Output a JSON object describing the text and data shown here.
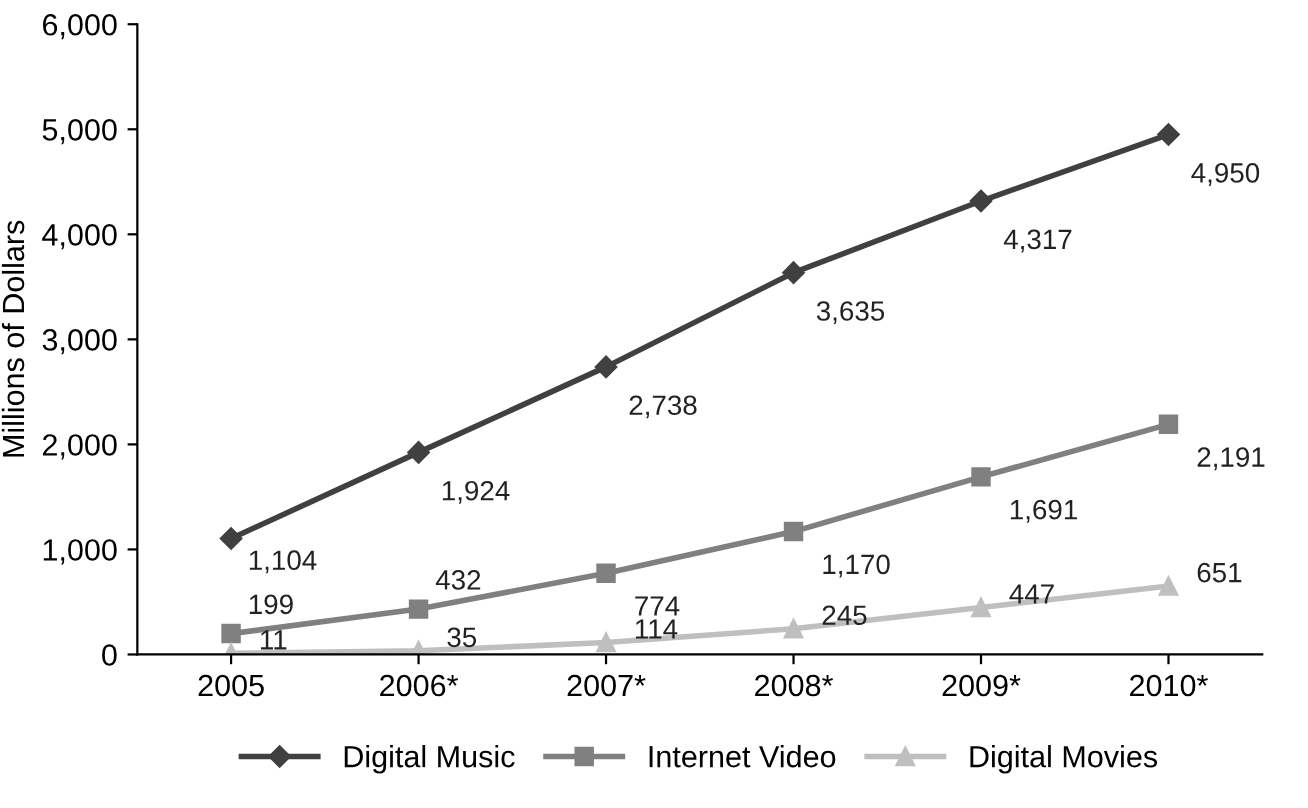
{
  "chart_data": {
    "type": "line",
    "ylabel": "Millions of Dollars",
    "categories": [
      "2005",
      "2006*",
      "2007*",
      "2008*",
      "2009*",
      "2010*"
    ],
    "ylim": [
      0,
      6000
    ],
    "yticks": [
      0,
      {
        "value": 1000,
        "label": "1,000"
      },
      {
        "value": 2000,
        "label": "2,000"
      },
      {
        "value": 3000,
        "label": "3,000"
      },
      {
        "value": 4000,
        "label": "4,000"
      },
      {
        "value": 5000,
        "label": "5,000"
      },
      {
        "value": 6000,
        "label": "6,000"
      }
    ],
    "grid": false,
    "legend": "bottom",
    "series": [
      {
        "name": "Digital Music",
        "color": "#404040",
        "marker": "diamond",
        "values": [
          1104,
          1924,
          2738,
          3635,
          4317,
          4950
        ],
        "value_labels": [
          "1,104",
          "1,924",
          "2,738",
          "3,635",
          "4,317",
          "4,950"
        ]
      },
      {
        "name": "Internet Video",
        "color": "#808080",
        "marker": "square",
        "values": [
          199,
          432,
          774,
          1170,
          1691,
          2191
        ],
        "value_labels": [
          "199",
          "432",
          "774",
          "1,170",
          "1,691",
          "2,191"
        ]
      },
      {
        "name": "Digital Movies",
        "color": "#bfbfbf",
        "marker": "triangle",
        "values": [
          11,
          35,
          114,
          245,
          447,
          651
        ],
        "value_labels": [
          "11",
          "35",
          "114",
          "245",
          "447",
          "651"
        ]
      }
    ]
  }
}
